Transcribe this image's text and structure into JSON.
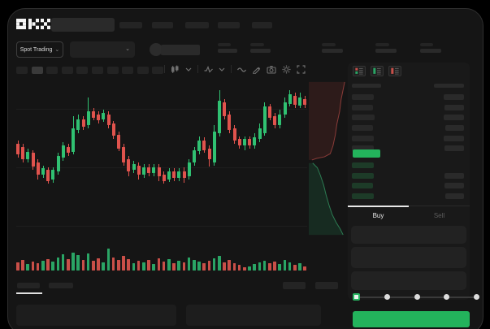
{
  "app": {
    "name": "OKX spot trading terminal"
  },
  "colors": {
    "background": "#000000",
    "window": "#151515",
    "panel": "#191919",
    "accent_green": "#23b35c",
    "candle_green": "#30c172",
    "candle_red": "#e0534d",
    "volume_green": "#2aa565",
    "volume_red": "#c94f48",
    "bid_row_green": "#1d3b28",
    "text": "#e8e8e8",
    "muted_text": "#5c5c5c"
  },
  "topbar": {
    "logo": "OKX",
    "search": {
      "placeholder": ""
    },
    "nav_placeholder_count": 5
  },
  "market_bar": {
    "pair_selector_label": "Spot Trading",
    "chevron": "⌄",
    "stat_placeholder_count": 5
  },
  "chart_toolbar": {
    "timeframe_button_count": 10,
    "active_timeframe_index": 1,
    "icons": [
      "candle-style-icon",
      "chevron-down-icon",
      "indicator-icon",
      "chevron-down-icon",
      "line-style-icon",
      "draw-icon",
      "camera-icon",
      "settings-icon",
      "fullscreen-icon"
    ]
  },
  "chart_data": {
    "type": "candlestick",
    "title": "",
    "axis_labels_visible": false,
    "scale_note": "values are percent of chart height measured from the top (no numeric axis is rendered in the screenshot)",
    "candles_ohlc_pct": [
      [
        40,
        38,
        49,
        47
      ],
      [
        42,
        40,
        52,
        50
      ],
      [
        50,
        43,
        52,
        45
      ],
      [
        46,
        44,
        57,
        55
      ],
      [
        52,
        50,
        63,
        60
      ],
      [
        60,
        54,
        62,
        56
      ],
      [
        57,
        55,
        66,
        64
      ],
      [
        63,
        55,
        65,
        57
      ],
      [
        58,
        46,
        60,
        48
      ],
      [
        49,
        39,
        51,
        41
      ],
      [
        42,
        40,
        48,
        46
      ],
      [
        45,
        22,
        47,
        30
      ],
      [
        31,
        21,
        33,
        24
      ],
      [
        24,
        22,
        31,
        29
      ],
      [
        28,
        10,
        30,
        19
      ],
      [
        19,
        17,
        25,
        23
      ],
      [
        21,
        19,
        27,
        25
      ],
      [
        24,
        18,
        26,
        20
      ],
      [
        21,
        19,
        30,
        28
      ],
      [
        27,
        25,
        37,
        35
      ],
      [
        34,
        32,
        45,
        43
      ],
      [
        42,
        40,
        54,
        52
      ],
      [
        50,
        48,
        61,
        58
      ],
      [
        57,
        51,
        59,
        53
      ],
      [
        54,
        52,
        63,
        60
      ],
      [
        60,
        53,
        62,
        55
      ],
      [
        55,
        53,
        61,
        59
      ],
      [
        59,
        53,
        61,
        55
      ],
      [
        55,
        53,
        64,
        61
      ],
      [
        60,
        58,
        66,
        64
      ],
      [
        63,
        56,
        65,
        58
      ],
      [
        58,
        56,
        64,
        62
      ],
      [
        62,
        56,
        64,
        58
      ],
      [
        58,
        55,
        65,
        62
      ],
      [
        61,
        50,
        63,
        52
      ],
      [
        52,
        42,
        54,
        44
      ],
      [
        45,
        35,
        47,
        38
      ],
      [
        38,
        36,
        46,
        44
      ],
      [
        43,
        41,
        55,
        50
      ],
      [
        52,
        28,
        54,
        32
      ],
      [
        33,
        5,
        35,
        12
      ],
      [
        13,
        11,
        24,
        22
      ],
      [
        21,
        19,
        33,
        31
      ],
      [
        30,
        28,
        40,
        38
      ],
      [
        37,
        35,
        43,
        41
      ],
      [
        41,
        35,
        44,
        37
      ],
      [
        37,
        35,
        43,
        41
      ],
      [
        41,
        33,
        43,
        36
      ],
      [
        37,
        27,
        39,
        30
      ],
      [
        33,
        13,
        35,
        16
      ],
      [
        16,
        14,
        25,
        23
      ],
      [
        22,
        20,
        30,
        28
      ],
      [
        28,
        18,
        30,
        21
      ],
      [
        21,
        10,
        23,
        13
      ],
      [
        14,
        5,
        16,
        8
      ],
      [
        9,
        7,
        17,
        15
      ],
      [
        15,
        7,
        17,
        10
      ],
      [
        11,
        9,
        17,
        15
      ]
    ],
    "volume_bars": [
      [
        10,
        0
      ],
      [
        13,
        0
      ],
      [
        8,
        1
      ],
      [
        11,
        0
      ],
      [
        9,
        0
      ],
      [
        12,
        1
      ],
      [
        14,
        0
      ],
      [
        11,
        1
      ],
      [
        16,
        1
      ],
      [
        20,
        1
      ],
      [
        14,
        0
      ],
      [
        22,
        1
      ],
      [
        19,
        1
      ],
      [
        13,
        0
      ],
      [
        21,
        1
      ],
      [
        12,
        0
      ],
      [
        15,
        0
      ],
      [
        10,
        1
      ],
      [
        27,
        1
      ],
      [
        16,
        0
      ],
      [
        13,
        0
      ],
      [
        18,
        0
      ],
      [
        14,
        0
      ],
      [
        9,
        1
      ],
      [
        12,
        0
      ],
      [
        10,
        1
      ],
      [
        13,
        0
      ],
      [
        8,
        1
      ],
      [
        15,
        0
      ],
      [
        11,
        0
      ],
      [
        14,
        1
      ],
      [
        9,
        0
      ],
      [
        12,
        1
      ],
      [
        10,
        0
      ],
      [
        16,
        1
      ],
      [
        13,
        1
      ],
      [
        11,
        1
      ],
      [
        9,
        0
      ],
      [
        12,
        0
      ],
      [
        15,
        1
      ],
      [
        18,
        1
      ],
      [
        10,
        0
      ],
      [
        13,
        0
      ],
      [
        9,
        0
      ],
      [
        7,
        0
      ],
      [
        4,
        0
      ],
      [
        5,
        1
      ],
      [
        8,
        1
      ],
      [
        10,
        1
      ],
      [
        12,
        1
      ],
      [
        9,
        0
      ],
      [
        11,
        0
      ],
      [
        8,
        1
      ],
      [
        13,
        1
      ],
      [
        10,
        1
      ],
      [
        7,
        0
      ],
      [
        9,
        1
      ],
      [
        5,
        0
      ]
    ],
    "depth": {
      "asks_curve_pct": [
        [
          92,
          1
        ],
        [
          88,
          6
        ],
        [
          83,
          12
        ],
        [
          79,
          20
        ],
        [
          72,
          28
        ],
        [
          68,
          35
        ],
        [
          62,
          42
        ],
        [
          55,
          47
        ],
        [
          40,
          49
        ],
        [
          20,
          50
        ],
        [
          8,
          51
        ]
      ],
      "bids_curve_pct": [
        [
          10,
          53
        ],
        [
          22,
          56
        ],
        [
          30,
          61
        ],
        [
          38,
          67
        ],
        [
          45,
          74
        ],
        [
          52,
          80
        ],
        [
          60,
          86
        ],
        [
          70,
          91
        ],
        [
          80,
          95
        ],
        [
          88,
          99
        ]
      ]
    },
    "gridlines_y_pct": [
      17.4,
      55.3,
      93.2
    ],
    "legend": "none"
  },
  "orderbook": {
    "layout_icons": [
      "book-both-icon",
      "book-bids-icon",
      "book-asks-icon"
    ],
    "header_placeholders": 2,
    "asks_rows": [
      [
        27,
        25
      ],
      [
        26,
        24
      ],
      [
        28,
        25
      ],
      [
        26,
        23
      ],
      [
        27,
        25
      ],
      [
        27,
        24
      ]
    ],
    "last_price_row": {
      "highlight_color": "#23b35c",
      "text": ""
    },
    "bids_rows": [
      [
        27,
        0
      ],
      [
        27,
        24
      ],
      [
        26,
        24
      ],
      [
        27,
        23
      ]
    ]
  },
  "trade_panel": {
    "tabs": [
      {
        "label": "Buy",
        "active": true
      },
      {
        "label": "Sell",
        "active": false
      }
    ],
    "field_placeholder_count": 3,
    "slider": {
      "step_count": 5,
      "selected_index": 0
    },
    "submit_button": {
      "label": "",
      "color": "#23b35c"
    }
  },
  "bottom_panel": {
    "tab_placeholder_count": 2,
    "active_tab_index": 0,
    "right_button_count": 2,
    "content_box_count": 2
  }
}
